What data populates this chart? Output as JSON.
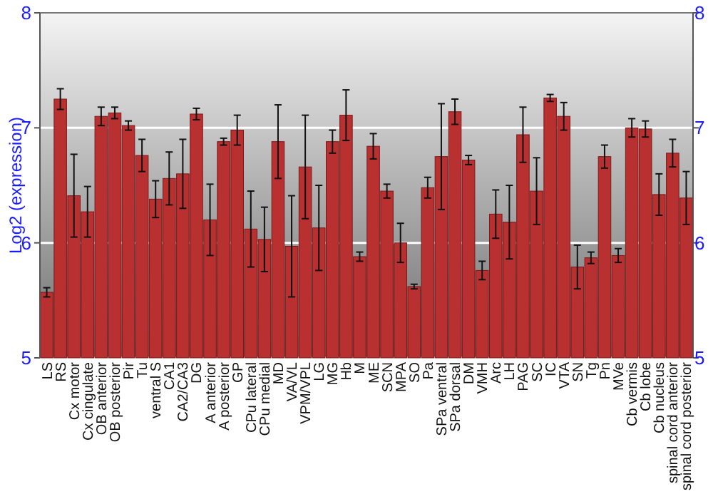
{
  "chart_data": {
    "type": "bar",
    "ylabel": "Log2 (expression)",
    "categories": [
      "LS",
      "RS",
      "Cx motor",
      "Cx cingulate",
      "OB anterior",
      "OB posterior",
      "Pir",
      "Tu",
      "ventral S",
      "CA1",
      "CA2/CA3",
      "DG",
      "A anterior",
      "A posterior",
      "GP",
      "CPu lateral",
      "CPu medial",
      "MD",
      "VA/VL",
      "VPM/VPL",
      "LG",
      "MG",
      "Hb",
      "M",
      "ME",
      "SCN",
      "MPA",
      "SO",
      "Pa",
      "SPa ventral",
      "SPa dorsal",
      "DM",
      "VMH",
      "Arc",
      "LH",
      "PAG",
      "SC",
      "IC",
      "VTA",
      "SN",
      "Tg",
      "Pn",
      "MVe",
      "Cb vermis",
      "Cb lobe",
      "Cb nucleus",
      "spinal cord anterior",
      "spinal cord posterior"
    ],
    "values": [
      5.57,
      7.25,
      6.41,
      6.27,
      7.1,
      7.13,
      7.02,
      6.76,
      6.38,
      6.56,
      6.6,
      7.12,
      6.2,
      6.88,
      6.98,
      6.12,
      6.03,
      6.88,
      5.97,
      6.66,
      6.13,
      6.88,
      7.11,
      5.88,
      6.84,
      6.45,
      6.0,
      5.62,
      6.48,
      6.75,
      7.14,
      6.72,
      5.76,
      6.25,
      6.18,
      6.94,
      6.45,
      7.26,
      7.1,
      5.79,
      5.87,
      6.75,
      5.89,
      7.0,
      6.99,
      6.42,
      6.78,
      6.39
    ],
    "errors": [
      0.04,
      0.09,
      0.36,
      0.22,
      0.08,
      0.05,
      0.04,
      0.14,
      0.16,
      0.23,
      0.3,
      0.05,
      0.31,
      0.03,
      0.13,
      0.33,
      0.28,
      0.32,
      0.44,
      0.45,
      0.37,
      0.1,
      0.22,
      0.04,
      0.11,
      0.06,
      0.17,
      0.02,
      0.09,
      0.46,
      0.11,
      0.04,
      0.08,
      0.21,
      0.32,
      0.24,
      0.29,
      0.03,
      0.12,
      0.19,
      0.05,
      0.1,
      0.06,
      0.08,
      0.07,
      0.18,
      0.12,
      0.23
    ],
    "color": "#b8302f",
    "ylim": [
      5,
      8
    ],
    "yticks": [
      5,
      6,
      7,
      8
    ],
    "y2lim": [
      5,
      8
    ],
    "y2ticks": [
      5,
      6,
      7,
      8
    ],
    "grid": "y"
  }
}
